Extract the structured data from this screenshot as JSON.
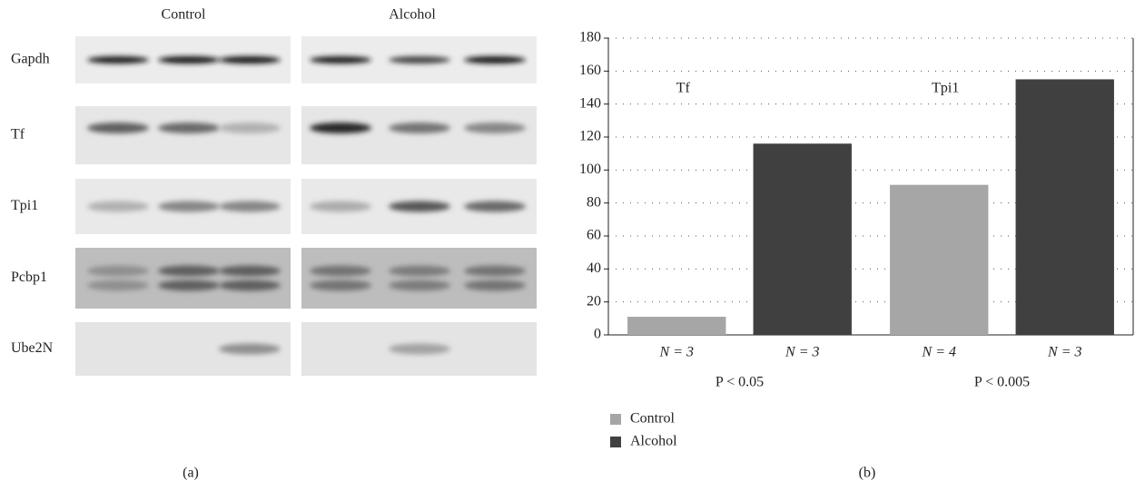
{
  "panel_a": {
    "columns": [
      "Control",
      "Alcohol"
    ],
    "rows": [
      "Gapdh",
      "Tf",
      "Tpi1",
      "Pcbp1",
      "Ube2N"
    ],
    "label": "(a)"
  },
  "chart_data": {
    "type": "bar",
    "label": "(b)",
    "categories": [
      "Tf",
      "Tpi1"
    ],
    "series": [
      {
        "name": "Control",
        "color": "#a6a6a6",
        "values": [
          11,
          91
        ],
        "sample_labels": [
          "N = 3",
          "N = 4"
        ]
      },
      {
        "name": "Alcohol",
        "color": "#404040",
        "values": [
          116,
          155
        ],
        "sample_labels": [
          "N = 3",
          "N = 3"
        ]
      }
    ],
    "p_values": [
      "P < 0.05",
      "P < 0.005"
    ],
    "ylim": [
      0,
      180
    ],
    "yticks": [
      0,
      20,
      40,
      60,
      80,
      100,
      120,
      140,
      160,
      180
    ],
    "grid": true,
    "legend": "bottom-left"
  }
}
